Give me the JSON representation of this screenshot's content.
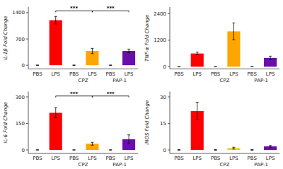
{
  "chart_data": [
    {
      "type": "bar",
      "y_label": "IL-1β Fold Change",
      "categories": [
        "PBS",
        "LPS",
        "PBS",
        "LPS",
        "PBS",
        "LPS"
      ],
      "values": [
        0,
        1200,
        0,
        380,
        0,
        380
      ],
      "errors": [
        5,
        100,
        5,
        70,
        5,
        50
      ],
      "colors": [
        "#d3d3d3",
        "#ff0000",
        "#ffa500",
        "#ffa500",
        "#6a0dad",
        "#6a0dad"
      ],
      "ylim": [
        -100,
        1550
      ],
      "yticks": [
        0,
        700,
        1400
      ],
      "annotations": [
        {
          "text": "***",
          "y": 1450,
          "x1": 1,
          "x2": 3
        },
        {
          "text": "***",
          "y": 1450,
          "x1": 3,
          "x2": 5
        },
        {
          "text": "CPZ",
          "x1": 2,
          "x2": 3
        },
        {
          "text": "PAP-1",
          "x1": 4,
          "x2": 5
        }
      ]
    },
    {
      "type": "bar",
      "y_label": "TNF-α Fold Change",
      "categories": [
        "PBS",
        "LPS",
        "PBS",
        "LPS",
        "PBS",
        "LPS"
      ],
      "values": [
        0,
        600,
        0,
        1600,
        0,
        400
      ],
      "errors": [
        5,
        60,
        5,
        380,
        5,
        80
      ],
      "colors": [
        "#d3d3d3",
        "#ff0000",
        "#ffa500",
        "#ffa500",
        "#6a0dad",
        "#6a0dad"
      ],
      "ylim": [
        -100,
        2700
      ],
      "yticks": [
        0,
        1200,
        2400
      ],
      "annotations": [
        {
          "text": "CPZ",
          "x1": 2,
          "x2": 3
        },
        {
          "text": "PAP-1",
          "x1": 4,
          "x2": 5
        }
      ]
    },
    {
      "type": "bar",
      "y_label": "IL-6 Fold Change",
      "categories": [
        "PBS",
        "LPS",
        "PBS",
        "LPS",
        "PBS",
        "LPS"
      ],
      "values": [
        0,
        210,
        0,
        35,
        0,
        60
      ],
      "errors": [
        1,
        28,
        1,
        8,
        1,
        25
      ],
      "colors": [
        "#d3d3d3",
        "#ff0000",
        "#ffa500",
        "#ffa500",
        "#6a0dad",
        "#6a0dad"
      ],
      "ylim": [
        -20,
        330
      ],
      "yticks": [
        0,
        150,
        300
      ],
      "annotations": [
        {
          "text": "***",
          "y": 305,
          "x1": 1,
          "x2": 3
        },
        {
          "text": "***",
          "y": 305,
          "x1": 3,
          "x2": 5
        },
        {
          "text": "CPZ",
          "x1": 2,
          "x2": 3
        },
        {
          "text": "PAP-1",
          "x1": 4,
          "x2": 5
        }
      ]
    },
    {
      "type": "bar",
      "y_label": "iNOS Fold Change",
      "categories": [
        "PBS",
        "LPS",
        "PBS",
        "LPS",
        "PBS",
        "LPS"
      ],
      "values": [
        0,
        22,
        0,
        1,
        0,
        2
      ],
      "errors": [
        0.2,
        5,
        0.2,
        0.5,
        0.2,
        0.5
      ],
      "colors": [
        "#d3d3d3",
        "#ff0000",
        "#e8d000",
        "#e8d000",
        "#6a0dad",
        "#6a0dad"
      ],
      "ylim": [
        -2,
        33
      ],
      "yticks": [
        0,
        15,
        30
      ],
      "annotations": [
        {
          "text": "CPZ",
          "x1": 2,
          "x2": 3
        },
        {
          "text": "PAP-1",
          "x1": 4,
          "x2": 5
        }
      ]
    }
  ]
}
